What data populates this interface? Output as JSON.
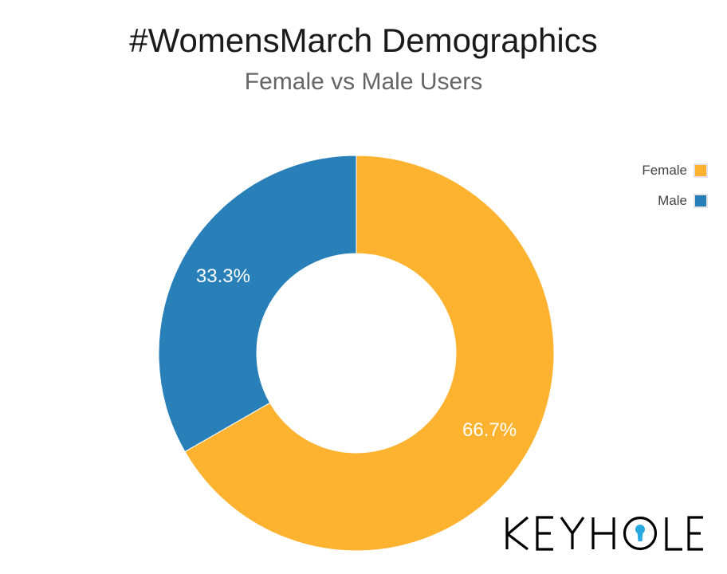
{
  "chart_data": {
    "type": "pie",
    "title": "#WomensMarch Demographics",
    "subtitle": "Female vs Male Users",
    "donut": true,
    "slices": [
      {
        "name": "Female",
        "value": 66.7,
        "label": "66.7%",
        "color": "#FDB32F"
      },
      {
        "name": "Male",
        "value": 33.3,
        "label": "33.3%",
        "color": "#2980B9"
      }
    ],
    "legend": {
      "placement": "top-right",
      "items": [
        {
          "label": "Female",
          "color": "#FDB32F"
        },
        {
          "label": "Male",
          "color": "#2980B9"
        }
      ]
    }
  },
  "branding": {
    "logo_text": "KEYHOLE",
    "accent_color": "#2AA9E0"
  }
}
